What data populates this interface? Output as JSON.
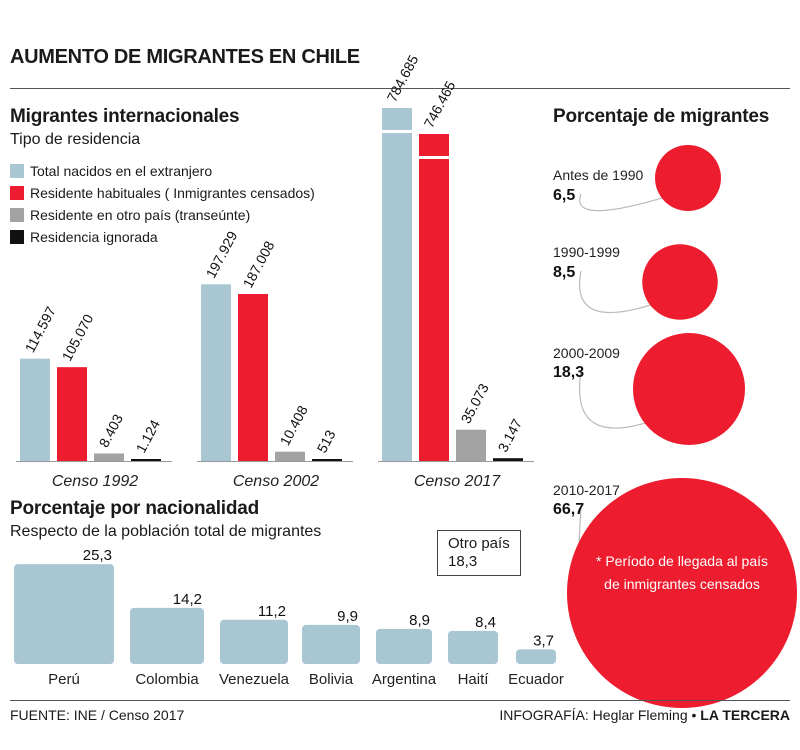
{
  "title": "AUMENTO DE MIGRANTES EN CHILE",
  "colors": {
    "total": "#a9c6d3",
    "habitual": "#ed1c2e",
    "transeunte": "#a3a3a3",
    "ignorada": "#111111",
    "pct": "#ed1c2e",
    "nat": "#a9c6d3"
  },
  "migrantes": {
    "title": "Migrantes internacionales",
    "subtitle": "Tipo de residencia",
    "legend": [
      {
        "label": "Total nacidos en el extranjero",
        "color": "#a9c6d3"
      },
      {
        "label": "Residente habituales ( Inmigrantes censados)",
        "color": "#ed1c2e"
      },
      {
        "label": "Residente en otro país (transeúnte)",
        "color": "#a3a3a3"
      },
      {
        "label": "Residencia ignorada",
        "color": "#111111"
      }
    ]
  },
  "porcentaje_migrantes": {
    "title": "Porcentaje de migrantes",
    "note": "* Período de llegada al país de inmigrantes censados"
  },
  "nacionalidad": {
    "title": "Porcentaje por nacionalidad",
    "subtitle": "Respecto de la población total de migrantes",
    "otro_label": "Otro país",
    "otro_value": "18,3"
  },
  "footer": {
    "source": "FUENTE: INE / Censo 2017",
    "credit": "INFOGRAFÍA: Heglar Fleming",
    "brand": "LA TERCERA"
  },
  "chart_data": [
    {
      "type": "bar",
      "title": "Migrantes internacionales",
      "categories": [
        "Censo 1992",
        "Censo 2002",
        "Censo 2017"
      ],
      "series": [
        {
          "name": "Total nacidos en el extranjero",
          "values": [
            114597,
            197929,
            784685
          ],
          "labels": [
            "114.597",
            "197.929",
            "784.685"
          ]
        },
        {
          "name": "Residente habituales ( Inmigrantes censados)",
          "values": [
            105070,
            187008,
            746465
          ],
          "labels": [
            "105.070",
            "187.008",
            "746.465"
          ]
        },
        {
          "name": "Residente en otro país (transeúnte)",
          "values": [
            8403,
            10408,
            35073
          ],
          "labels": [
            "8.403",
            "10.408",
            "35.073"
          ]
        },
        {
          "name": "Residencia ignorada",
          "values": [
            1124,
            513,
            3147
          ],
          "labels": [
            "1.124",
            "513",
            "3.147"
          ]
        }
      ]
    },
    {
      "type": "bubble",
      "title": "Porcentaje de migrantes",
      "categories": [
        "Antes de 1990",
        "1990-1999",
        "2000-2009",
        "2010-2017"
      ],
      "values": [
        6.5,
        8.5,
        18.3,
        66.7
      ],
      "labels": [
        "6,5",
        "8,5",
        "18,3",
        "66,7"
      ]
    },
    {
      "type": "bar",
      "title": "Porcentaje por nacionalidad",
      "categories": [
        "Perú",
        "Colombia",
        "Venezuela",
        "Bolivia",
        "Argentina",
        "Haití",
        "Ecuador"
      ],
      "values": [
        25.3,
        14.2,
        11.2,
        9.9,
        8.9,
        8.4,
        3.7
      ],
      "labels": [
        "25,3",
        "14,2",
        "11,2",
        "9,9",
        "8,9",
        "8,4",
        "3,7"
      ]
    }
  ]
}
